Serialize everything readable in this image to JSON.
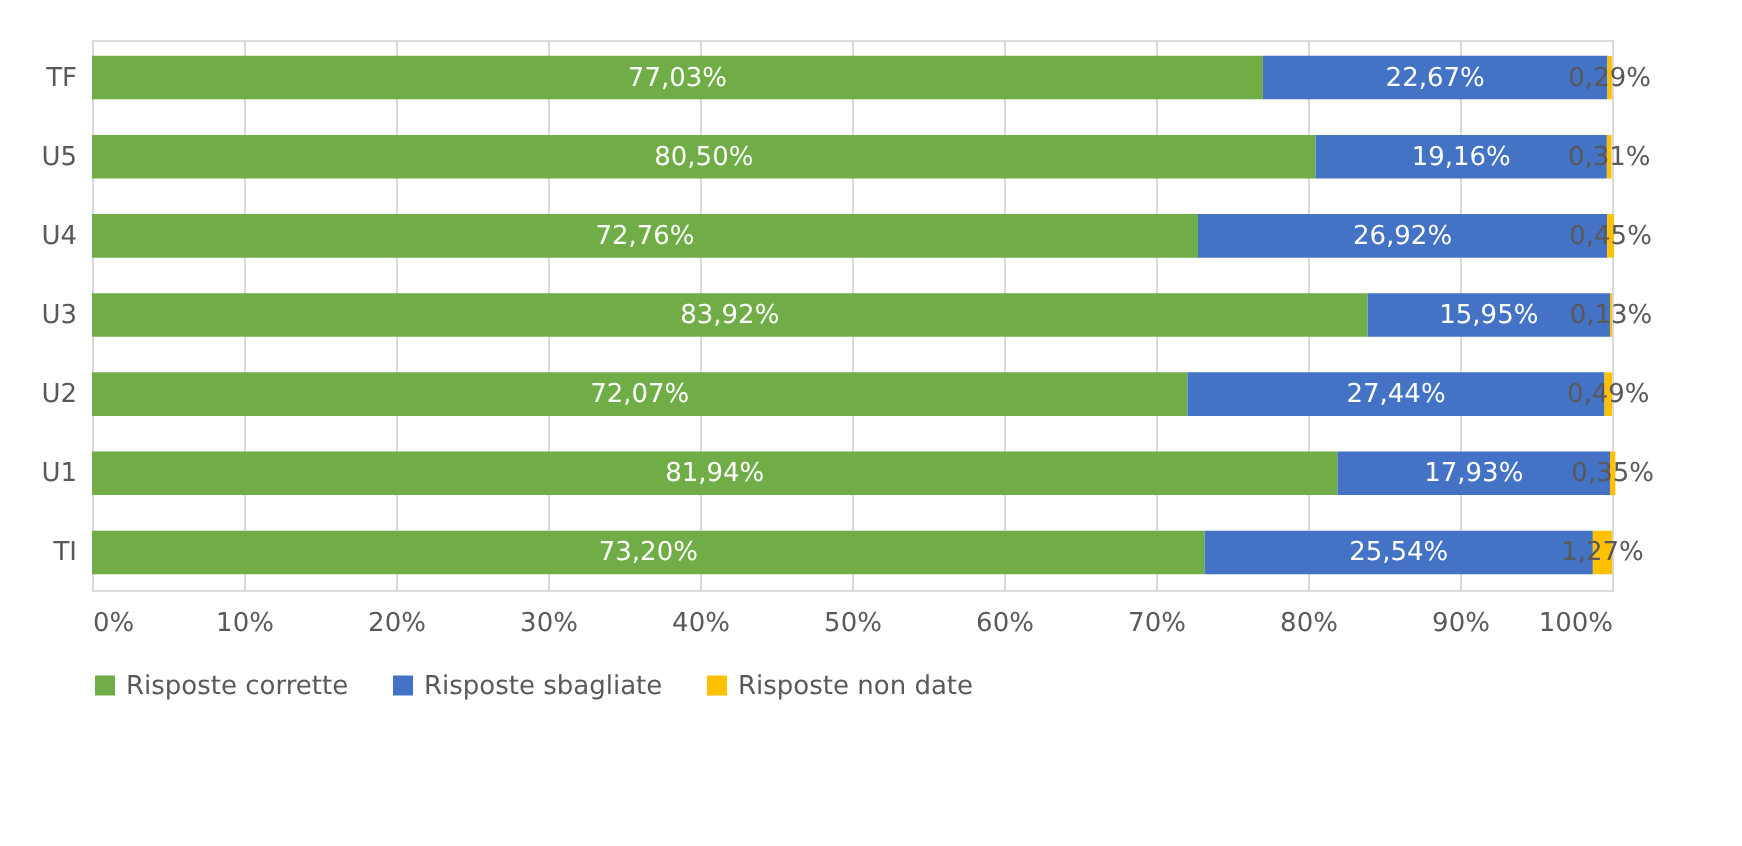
{
  "chart_data": {
    "type": "bar",
    "orientation": "horizontal",
    "stacked": true,
    "categories": [
      "TF",
      "U5",
      "U4",
      "U3",
      "U2",
      "U1",
      "TI"
    ],
    "series": [
      {
        "name": "Risposte corrette",
        "color": "#70ad47",
        "values": [
          77.03,
          80.5,
          72.76,
          83.92,
          72.07,
          81.94,
          73.2
        ],
        "value_labels": [
          "77,03%",
          "80,50%",
          "72,76%",
          "83,92%",
          "72,07%",
          "81,94%",
          "73,20%"
        ]
      },
      {
        "name": "Risposte sbagliate",
        "color": "#4472c4",
        "values": [
          22.67,
          19.16,
          26.92,
          15.95,
          27.44,
          17.93,
          25.54
        ],
        "value_labels": [
          "22,67%",
          "19,16%",
          "26,92%",
          "15,95%",
          "27,44%",
          "17,93%",
          "25,54%"
        ]
      },
      {
        "name": "Risposte non date",
        "color": "#ffc000",
        "values": [
          0.29,
          0.31,
          0.45,
          0.13,
          0.49,
          0.35,
          1.27
        ],
        "value_labels": [
          "0,29%",
          "0,31%",
          "0,45%",
          "0,13%",
          "0,49%",
          "0,35%",
          "1,27%"
        ]
      }
    ],
    "xlim": [
      0,
      100
    ],
    "xticks": [
      {
        "value": 0,
        "label": "0%"
      },
      {
        "value": 10,
        "label": "10%"
      },
      {
        "value": 20,
        "label": "20%"
      },
      {
        "value": 30,
        "label": "30%"
      },
      {
        "value": 40,
        "label": "40%"
      },
      {
        "value": 50,
        "label": "50%"
      },
      {
        "value": 60,
        "label": "60%"
      },
      {
        "value": 70,
        "label": "70%"
      },
      {
        "value": 80,
        "label": "80%"
      },
      {
        "value": 90,
        "label": "90%"
      },
      {
        "value": 100,
        "label": "100%"
      }
    ],
    "grid": "x",
    "legend": "bottom"
  }
}
